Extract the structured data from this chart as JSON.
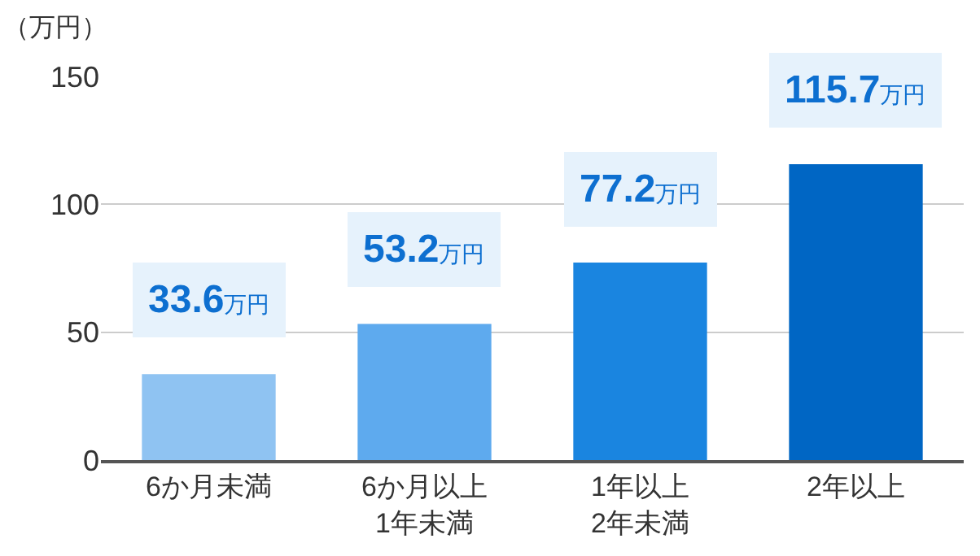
{
  "chart_data": {
    "type": "bar",
    "ylabel": "（万円）",
    "categories": [
      "6か月未満",
      "6か月以上\n1年未満",
      "1年以上\n2年未満",
      "2年以上"
    ],
    "values": [
      33.6,
      53.2,
      77.2,
      115.7
    ],
    "colors": [
      "#8fc3f2",
      "#5eaaee",
      "#1a85e0",
      "#0066c4"
    ],
    "value_labels": [
      "33.6万円",
      "53.2万円",
      "77.2万円",
      "115.7万円"
    ],
    "ylim": [
      0,
      150
    ],
    "yticks": [
      0,
      50,
      100,
      150
    ],
    "grid": "y"
  }
}
